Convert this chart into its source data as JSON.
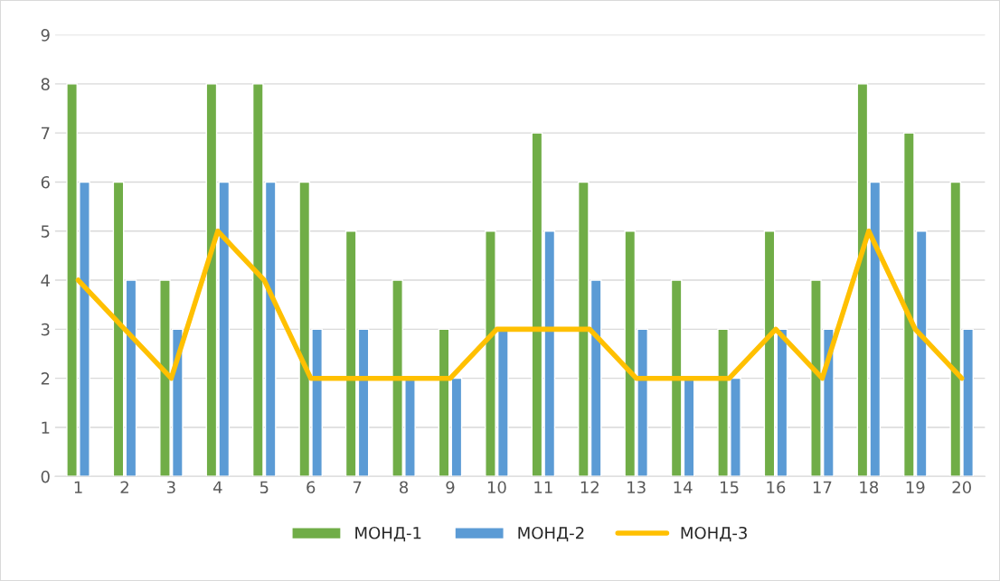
{
  "chart_data": {
    "type": "bar",
    "categories": [
      "1",
      "2",
      "3",
      "4",
      "5",
      "6",
      "7",
      "8",
      "9",
      "10",
      "11",
      "12",
      "13",
      "14",
      "15",
      "16",
      "17",
      "18",
      "19",
      "20"
    ],
    "series": [
      {
        "name": "МОНД-1",
        "color": "#70ad47",
        "values": [
          8,
          6,
          4,
          8,
          8,
          6,
          5,
          4,
          3,
          5,
          7,
          6,
          5,
          4,
          3,
          5,
          4,
          8,
          7,
          6
        ]
      },
      {
        "name": "МОНД-2",
        "color": "#5b9bd5",
        "values": [
          6,
          4,
          3,
          6,
          6,
          3,
          3,
          2,
          2,
          3,
          5,
          4,
          3,
          2,
          2,
          3,
          3,
          6,
          5,
          3
        ]
      },
      {
        "name": "МОНД-3",
        "color": "#ffc000",
        "type": "line",
        "values": [
          4,
          3,
          2,
          5,
          4,
          2,
          2,
          2,
          2,
          3,
          3,
          3,
          2,
          2,
          2,
          3,
          2,
          5,
          3,
          2
        ]
      }
    ],
    "ylim": [
      0,
      9
    ],
    "yticks": [
      0,
      1,
      2,
      3,
      4,
      5,
      6,
      7,
      8,
      9
    ],
    "grid": "y",
    "legend": "bottom"
  }
}
